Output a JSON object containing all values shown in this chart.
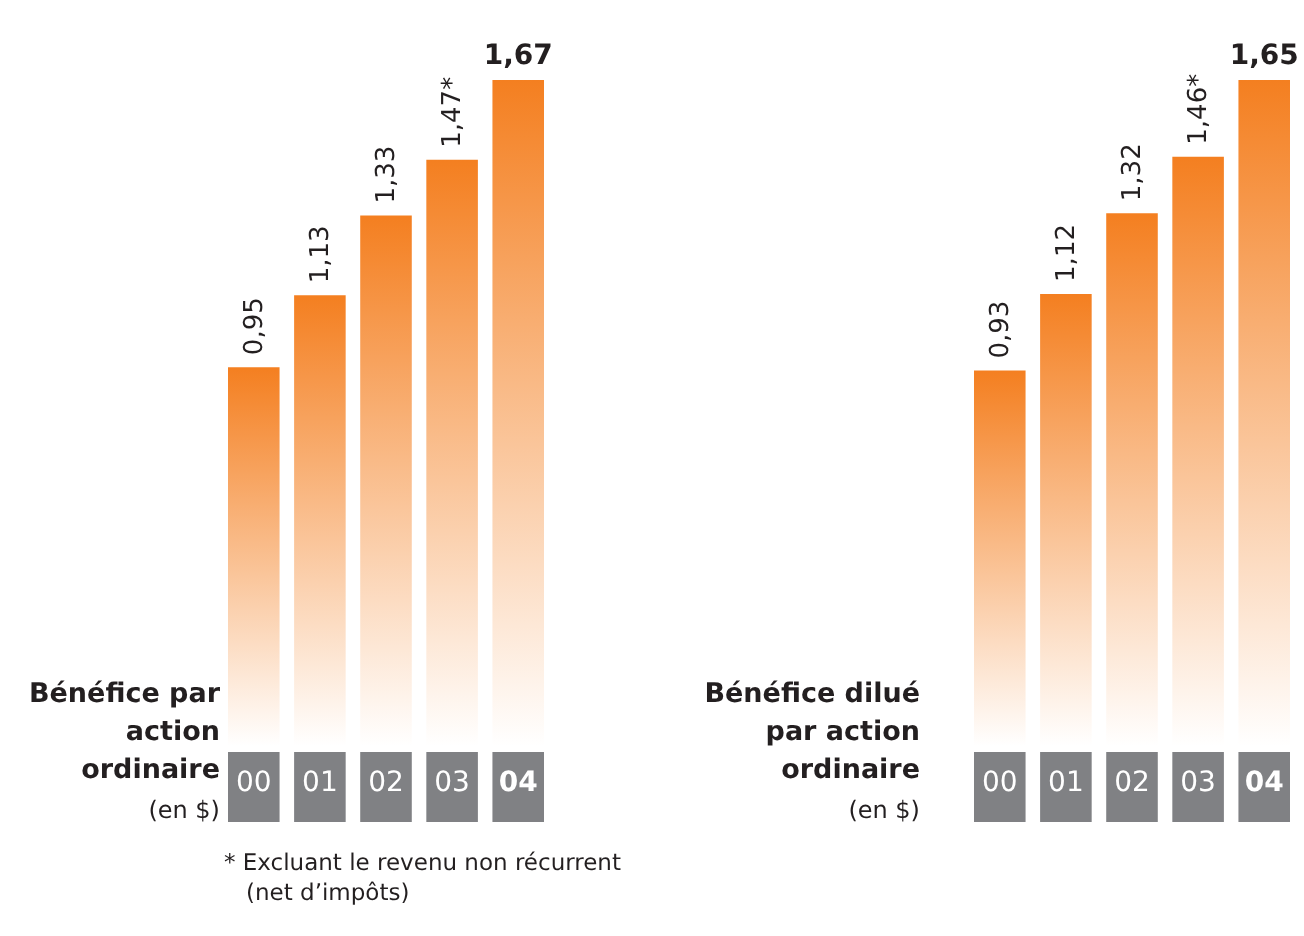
{
  "chart_data": [
    {
      "type": "bar",
      "title": "Bénéfice par action ordinaire",
      "subtitle": "(en $)",
      "categories": [
        "00",
        "01",
        "02",
        "03",
        "04"
      ],
      "values": [
        0.95,
        1.13,
        1.33,
        1.47,
        1.67
      ],
      "value_labels": [
        "0,95",
        "1,13",
        "1,33",
        "1,47*",
        "1,67"
      ],
      "color": "#f47f20",
      "annotations": [
        "* Excluant le revenu non récurrent (net d’impôts)"
      ]
    },
    {
      "type": "bar",
      "title": "Bénéfice dilué par action ordinaire",
      "subtitle": "(en $)",
      "categories": [
        "00",
        "01",
        "02",
        "03",
        "04"
      ],
      "values": [
        0.93,
        1.12,
        1.32,
        1.46,
        1.65
      ],
      "value_labels": [
        "0,93",
        "1,12",
        "1,32",
        "1,46*",
        "1,65"
      ],
      "color": "#f47f20"
    }
  ]
}
